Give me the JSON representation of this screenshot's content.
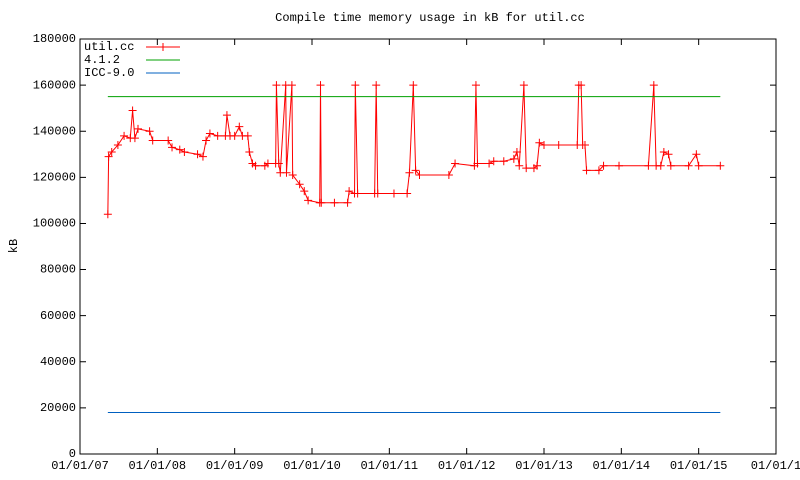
{
  "chart_data": {
    "type": "line",
    "title": "Compile time memory usage in kB for util.cc",
    "y_label": "kB",
    "xlim": [
      2007,
      2016
    ],
    "xticks": [
      {
        "value": 2007,
        "label": "01/01/07"
      },
      {
        "value": 2008,
        "label": "01/01/08"
      },
      {
        "value": 2009,
        "label": "01/01/09"
      },
      {
        "value": 2010,
        "label": "01/01/10"
      },
      {
        "value": 2011,
        "label": "01/01/11"
      },
      {
        "value": 2012,
        "label": "01/01/12"
      },
      {
        "value": 2013,
        "label": "01/01/13"
      },
      {
        "value": 2014,
        "label": "01/01/14"
      },
      {
        "value": 2015,
        "label": "01/01/15"
      },
      {
        "value": 2016,
        "label": "01/01/1"
      }
    ],
    "ylim": [
      0,
      180000
    ],
    "yticks": [
      0,
      20000,
      40000,
      60000,
      80000,
      100000,
      120000,
      140000,
      160000,
      180000
    ],
    "legend": "top-left",
    "series": [
      {
        "name": "util.cc",
        "color": "#ff0000",
        "marker": "plus",
        "x": [
          2007.36,
          2007.37,
          2007.41,
          2007.49,
          2007.57,
          2007.65,
          2007.68,
          2007.71,
          2007.75,
          2007.9,
          2007.94,
          2008.14,
          2008.19,
          2008.29,
          2008.35,
          2008.52,
          2008.59,
          2008.63,
          2008.68,
          2008.78,
          2008.88,
          2008.9,
          2008.94,
          2009.0,
          2009.06,
          2009.1,
          2009.17,
          2009.19,
          2009.23,
          2009.27,
          2009.39,
          2009.43,
          2009.53,
          2009.54,
          2009.57,
          2009.59,
          2009.66,
          2009.67,
          2009.74,
          2009.75,
          2009.84,
          2009.9,
          2009.95,
          2010.1,
          2010.11,
          2010.12,
          2010.29,
          2010.46,
          2010.48,
          2010.55,
          2010.56,
          2010.59,
          2010.81,
          2010.83,
          2010.85,
          2011.06,
          2011.23,
          2011.26,
          2011.31,
          2011.34,
          2011.39,
          2011.77,
          2011.85,
          2012.1,
          2012.12,
          2012.14,
          2012.29,
          2012.35,
          2012.48,
          2012.61,
          2012.65,
          2012.68,
          2012.74,
          2012.77,
          2012.87,
          2012.91,
          2012.94,
          2013.0,
          2013.19,
          2013.43,
          2013.45,
          2013.48,
          2013.5,
          2013.53,
          2013.55,
          2013.71,
          2013.77,
          2013.97,
          2014.35,
          2014.42,
          2014.45,
          2014.51,
          2014.55,
          2014.61,
          2014.64,
          2014.87,
          2014.97,
          2015.0,
          2015.28
        ],
        "values": [
          104000,
          129000,
          131000,
          134000,
          138000,
          137000,
          149000,
          137000,
          141000,
          140000,
          136000,
          136000,
          133000,
          132000,
          131000,
          130000,
          129000,
          136000,
          139000,
          138000,
          138000,
          147000,
          138000,
          138000,
          142000,
          138000,
          138000,
          131000,
          126000,
          125000,
          125000,
          126000,
          126000,
          160000,
          126000,
          122000,
          160000,
          122000,
          160000,
          121000,
          117000,
          114000,
          110000,
          109000,
          160000,
          109000,
          109000,
          109000,
          114000,
          113000,
          160000,
          113000,
          113000,
          160000,
          113000,
          113000,
          113000,
          122000,
          160000,
          123000,
          121000,
          121000,
          126000,
          125000,
          160000,
          126000,
          126000,
          127000,
          127000,
          128000,
          131000,
          125000,
          160000,
          124000,
          124000,
          125000,
          135000,
          134000,
          134000,
          134000,
          160000,
          160000,
          134000,
          134000,
          123000,
          123000,
          125000,
          125000,
          125000,
          160000,
          125000,
          125000,
          131000,
          130000,
          125000,
          125000,
          130000,
          125000,
          125000
        ]
      },
      {
        "name": "4.1.2",
        "color": "#00a000",
        "x": [
          2007.36,
          2015.28
        ],
        "values": [
          155000,
          155000
        ]
      },
      {
        "name": "ICC-9.0",
        "color": "#0060c0",
        "x": [
          2007.36,
          2015.28
        ],
        "values": [
          18000,
          18000
        ]
      }
    ]
  }
}
